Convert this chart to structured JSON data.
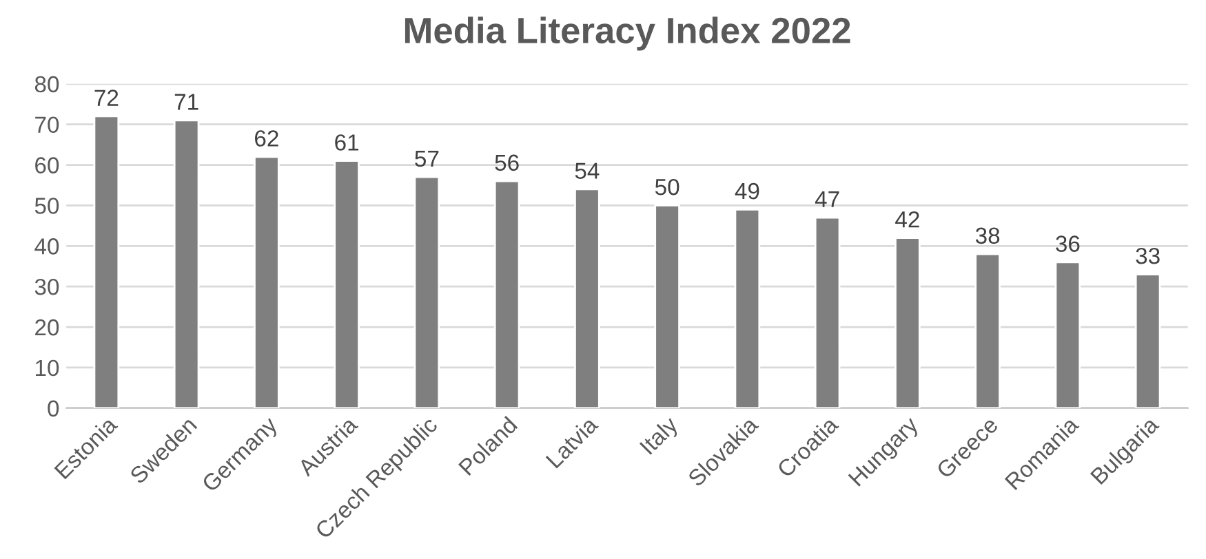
{
  "chart_data": {
    "type": "bar",
    "title": "Media Literacy Index 2022",
    "categories": [
      "Estonia",
      "Sweden",
      "Germany",
      "Austria",
      "Czech Republic",
      "Poland",
      "Latvia",
      "Italy",
      "Slovakia",
      "Croatia",
      "Hungary",
      "Greece",
      "Romania",
      "Bulgaria"
    ],
    "values": [
      72,
      71,
      62,
      61,
      57,
      56,
      54,
      50,
      49,
      47,
      42,
      38,
      36,
      33
    ],
    "color": "#7f7f7f",
    "ylim": [
      0,
      80
    ],
    "yticks": [
      0,
      10,
      20,
      30,
      40,
      50,
      60,
      70,
      80
    ],
    "grid": "y",
    "data_labels": true
  }
}
